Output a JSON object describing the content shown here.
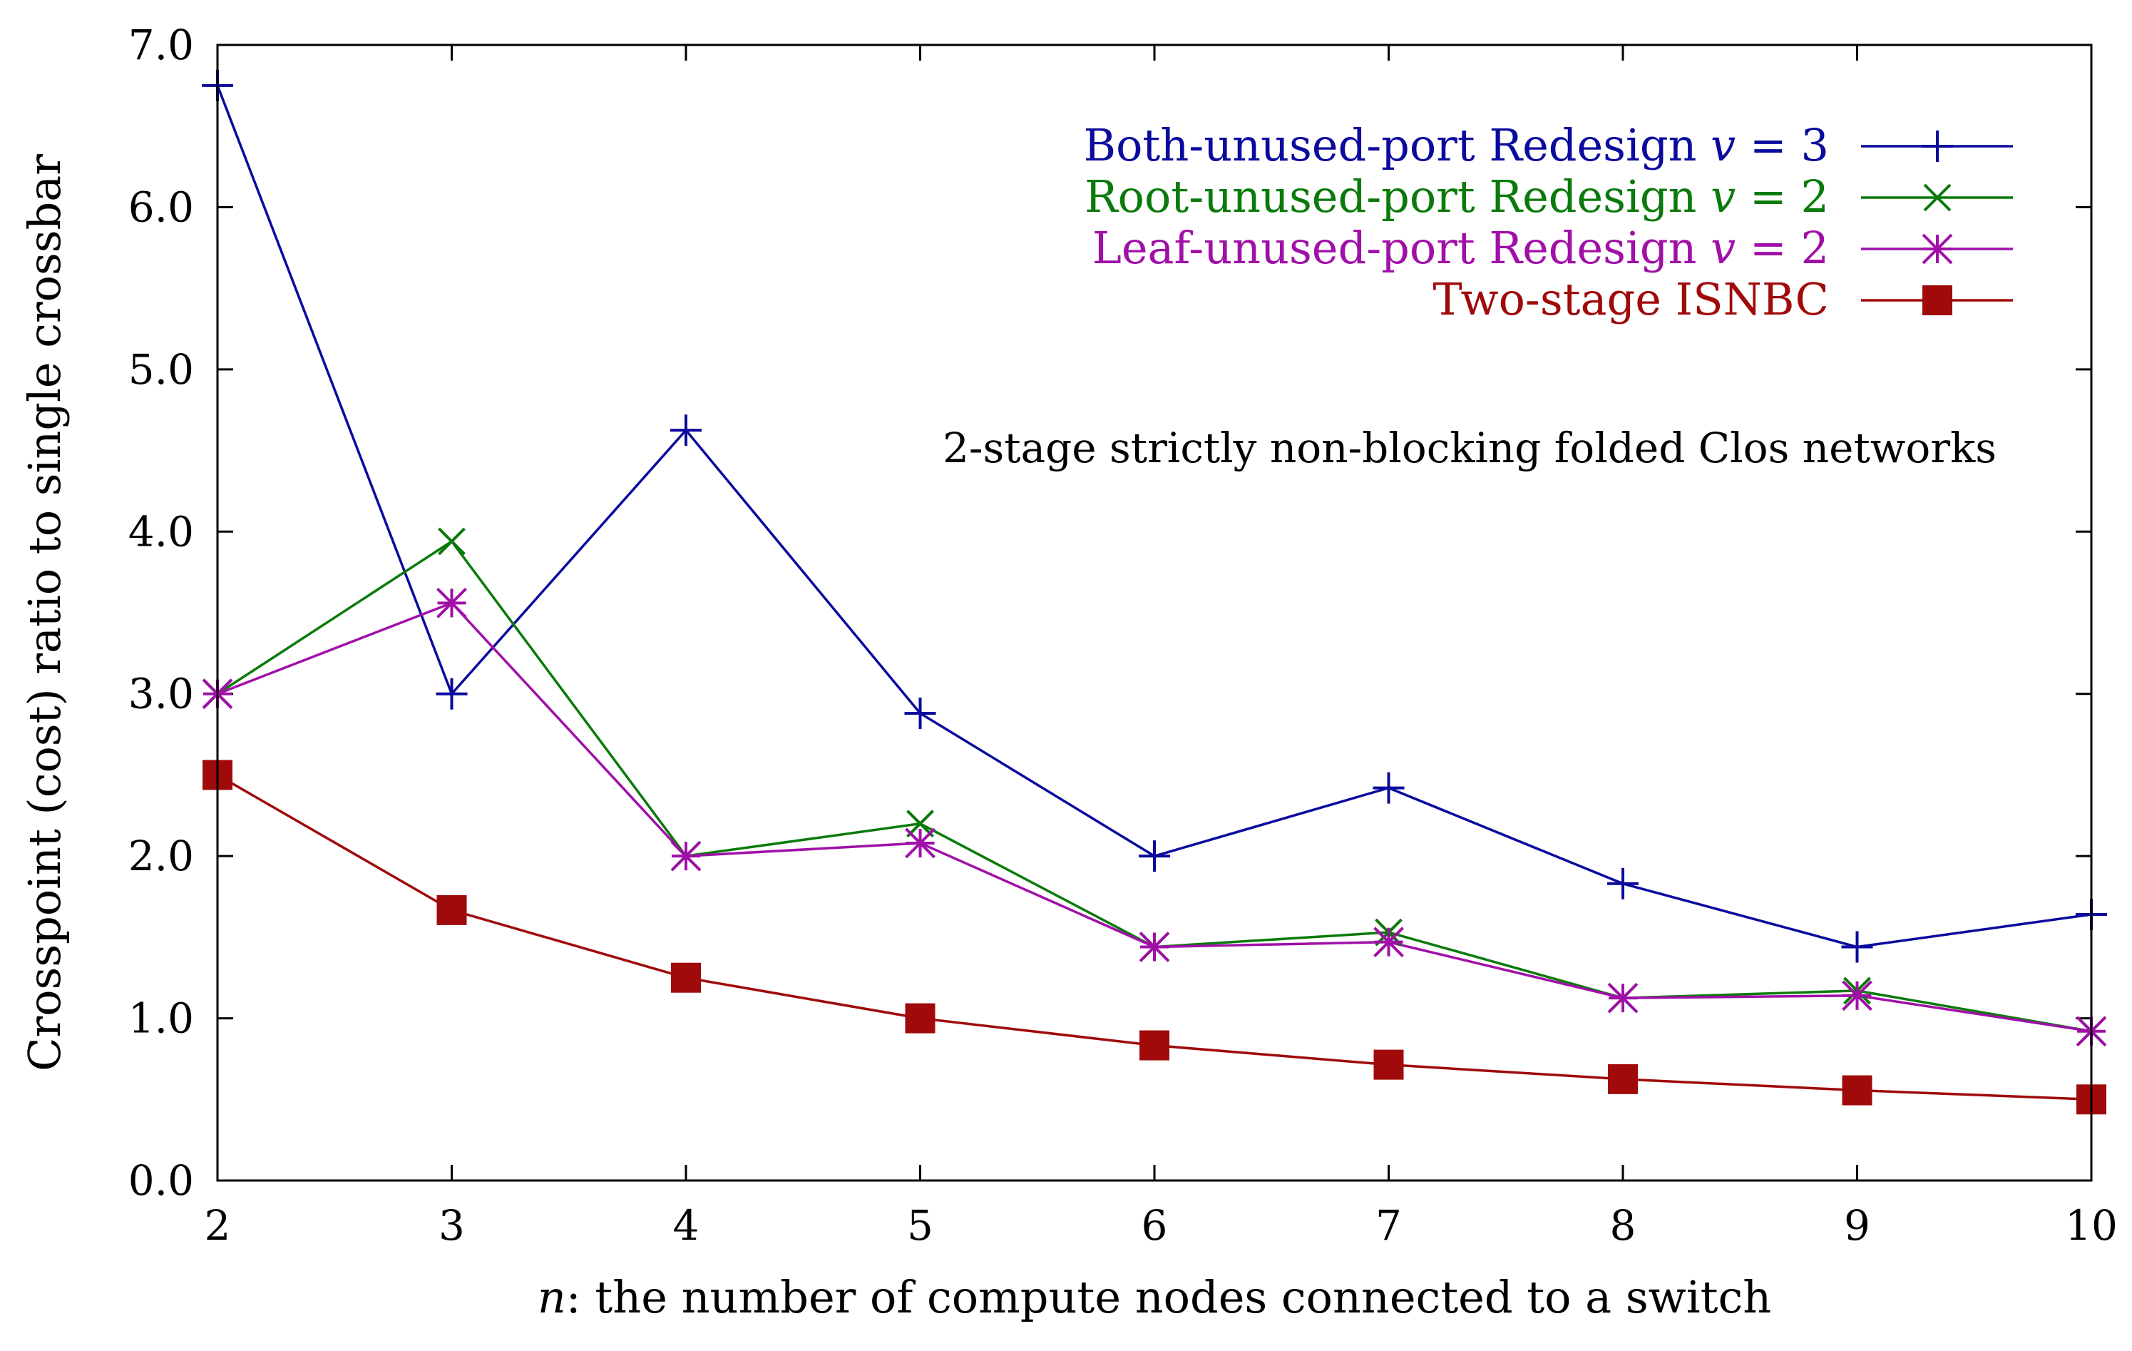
{
  "chart_data": {
    "type": "line",
    "title": "",
    "annotation": "2-stage strictly non-blocking folded Clos networks",
    "xlabel_italic": "n",
    "xlabel_rest": ": the number of compute nodes connected to a switch",
    "ylabel": "Crosspoint (cost) ratio to single crossbar",
    "x": [
      2,
      3,
      4,
      5,
      6,
      7,
      8,
      9,
      10
    ],
    "xlim": [
      2,
      10
    ],
    "ylim": [
      0,
      7
    ],
    "xticks": [
      "2",
      "3",
      "4",
      "5",
      "6",
      "7",
      "8",
      "9",
      "10"
    ],
    "yticks": [
      "0.0",
      "1.0",
      "2.0",
      "3.0",
      "4.0",
      "5.0",
      "6.0",
      "7.0"
    ],
    "legend_position": "top-right",
    "series": [
      {
        "name": "Both-unused-port Redesign",
        "var": "v",
        "eq": " = 3",
        "color": "#0a0a9e",
        "marker": "plus",
        "values": [
          6.75,
          3.0,
          4.625,
          2.88,
          2.0,
          2.42,
          1.83,
          1.44,
          1.64
        ]
      },
      {
        "name": "Root-unused-port Redesign",
        "var": "v",
        "eq": " = 2",
        "color": "#0a7a0a",
        "marker": "cross",
        "values": [
          3.0,
          3.94,
          2.0,
          2.2,
          1.44,
          1.53,
          1.125,
          1.17,
          0.92
        ]
      },
      {
        "name": "Leaf-unused-port Redesign",
        "var": "v",
        "eq": " = 2",
        "color": "#a010a8",
        "marker": "star",
        "values": [
          3.0,
          3.56,
          2.0,
          2.08,
          1.44,
          1.47,
          1.125,
          1.14,
          0.92
        ]
      },
      {
        "name": "Two-stage ISNBC",
        "var": "",
        "eq": "",
        "color": "#a00a0a",
        "marker": "square",
        "values": [
          2.5,
          1.667,
          1.25,
          1.0,
          0.833,
          0.714,
          0.625,
          0.556,
          0.5
        ]
      }
    ]
  }
}
